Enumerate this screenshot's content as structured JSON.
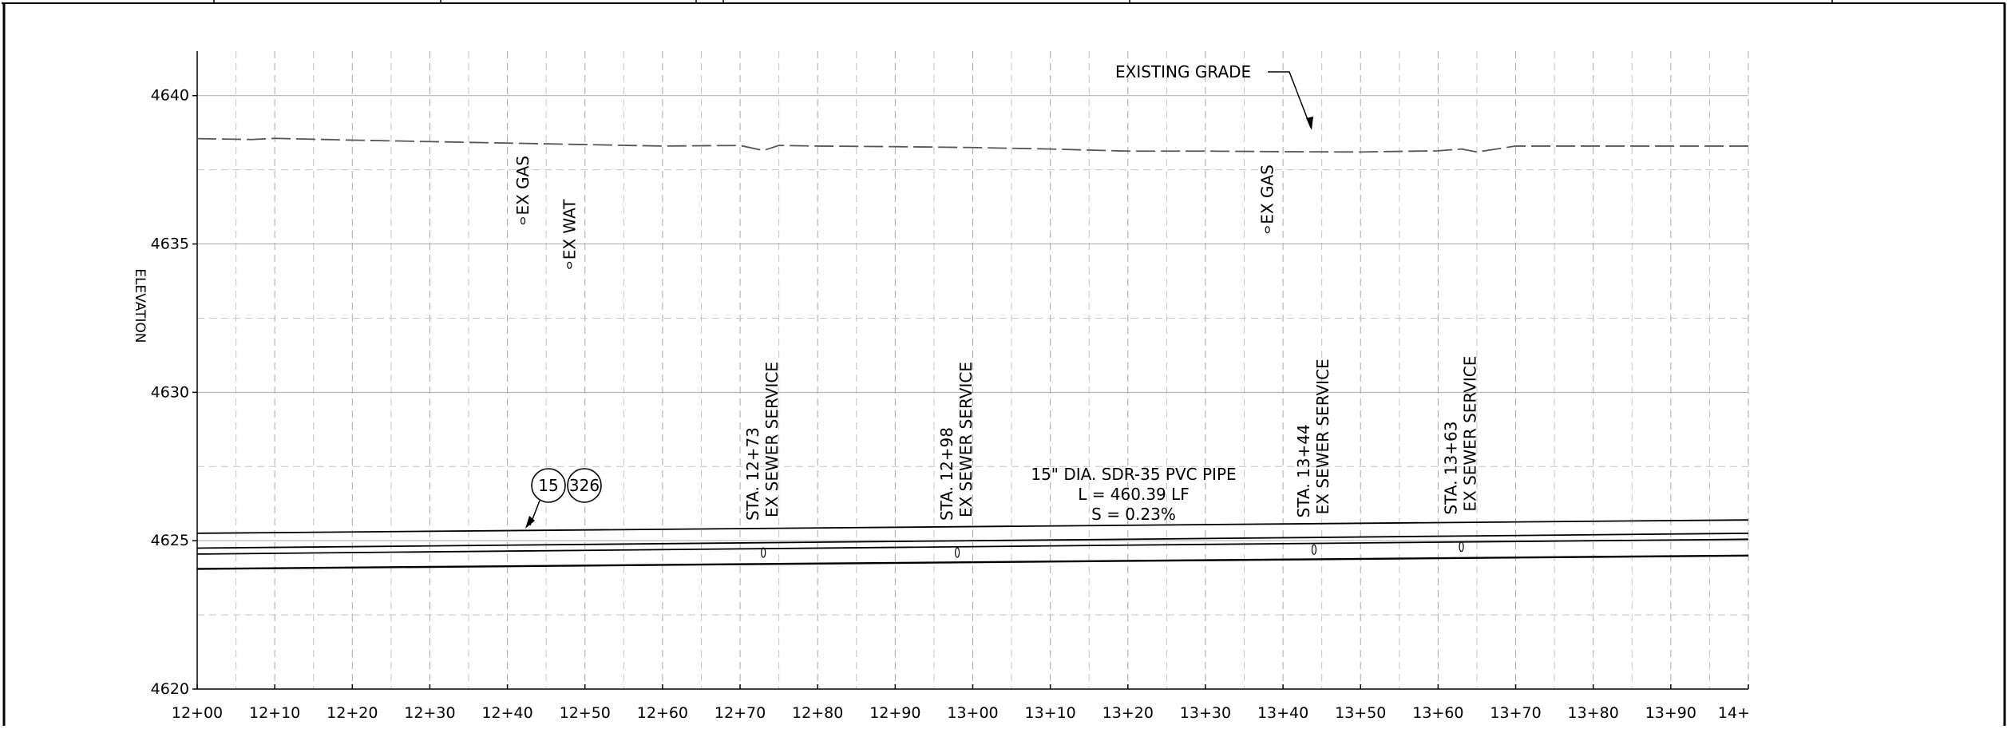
{
  "profile": {
    "y_axis_label": "ELEVATION",
    "elevation_labels": [
      "4640",
      "4635",
      "4630",
      "4625",
      "4620"
    ],
    "elevation_values": [
      4640,
      4635,
      4630,
      4625,
      4620
    ],
    "station_labels": [
      "12+00",
      "12+10",
      "12+20",
      "12+30",
      "12+40",
      "12+50",
      "12+60",
      "12+70",
      "12+80",
      "12+90",
      "13+00",
      "13+10",
      "13+20",
      "13+30",
      "13+40",
      "13+50",
      "13+60",
      "13+70",
      "13+80",
      "13+90",
      "14+"
    ],
    "station_range": [
      1200,
      1400
    ],
    "elevation_range": [
      4620,
      4641.5
    ],
    "existing_grade": {
      "label": "EXISTING GRADE",
      "stations": [
        1200,
        1207,
        1210,
        1220,
        1230,
        1240,
        1250,
        1260,
        1270,
        1273,
        1275,
        1280,
        1290,
        1300,
        1310,
        1320,
        1330,
        1340,
        1350,
        1360,
        1363,
        1365,
        1370,
        1380,
        1390,
        1400
      ],
      "elevations": [
        4638.55,
        4638.52,
        4638.56,
        4638.5,
        4638.45,
        4638.4,
        4638.35,
        4638.3,
        4638.32,
        4638.15,
        4638.32,
        4638.3,
        4638.28,
        4638.25,
        4638.2,
        4638.13,
        4638.13,
        4638.11,
        4638.1,
        4638.14,
        4638.2,
        4638.1,
        4638.3,
        4638.3,
        4638.3,
        4638.3
      ]
    },
    "utility_crossings": [
      {
        "label": "EX GAS",
        "station": 1242,
        "elevation": 4635.7
      },
      {
        "label": "EX WAT",
        "station": 1248,
        "elevation": 4634.2
      },
      {
        "label": "EX GAS",
        "station": 1338,
        "elevation": 4635.4
      }
    ],
    "sewer_services": [
      {
        "station_label": "STA. 12+73",
        "label": "EX SEWER SERVICE",
        "station": 1273,
        "elevation": 4624.6
      },
      {
        "station_label": "STA. 12+98",
        "label": "EX SEWER SERVICE",
        "station": 1298,
        "elevation": 4624.6
      },
      {
        "station_label": "STA. 13+44",
        "label": "EX SEWER SERVICE",
        "station": 1344,
        "elevation": 4624.7
      },
      {
        "station_label": "STA. 13+63",
        "label": "EX SEWER SERVICE",
        "station": 1363,
        "elevation": 4624.8
      }
    ],
    "pipe": {
      "description": "15\" DIA. SDR-35 PVC PIPE",
      "length": "L = 460.39 LF",
      "slope": "S = 0.23%",
      "start_station": 1200,
      "end_station": 1400,
      "profile_lines": [
        {
          "start": 4625.25,
          "end": 4625.7
        },
        {
          "start": 4624.75,
          "end": 4625.25
        },
        {
          "start": 4624.55,
          "end": 4625.05
        },
        {
          "start": 4624.05,
          "end": 4624.5
        }
      ]
    },
    "callouts": [
      {
        "text": "15"
      },
      {
        "text": "326"
      }
    ]
  }
}
